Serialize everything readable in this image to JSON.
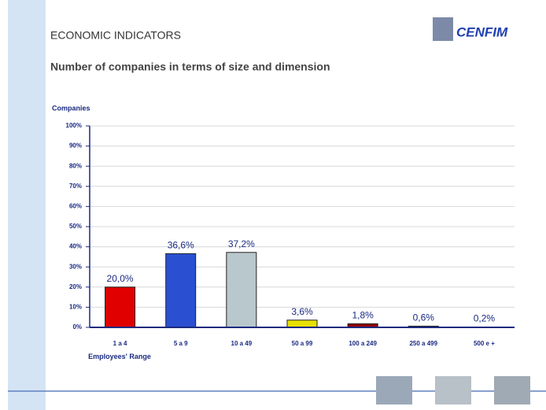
{
  "chart_data": {
    "type": "bar",
    "title": "ECONOMIC INDICATORS",
    "subtitle": "Number of companies in terms of size and dimension",
    "logo": "CENFIM",
    "y_label": "Companies",
    "x_label": "Employees' Range",
    "categories": [
      "1 a 4",
      "5 a 9",
      "10 a 49",
      "50 a 99",
      "100 a 249",
      "250 a 499",
      "500 e +"
    ],
    "values": [
      20.0,
      36.6,
      37.2,
      3.6,
      1.8,
      0.6,
      0.2
    ],
    "value_labels": [
      "20,0%",
      "36,6%",
      "37,2%",
      "3,6%",
      "1,8%",
      "0,6%",
      "0,2%"
    ],
    "colors": [
      "#e00000",
      "#2a4fd0",
      "#b8c8cc",
      "#e8e000",
      "#900000",
      "#c06060",
      "#5060c0"
    ],
    "ylim": [
      0,
      100
    ],
    "yticks": [
      {
        "value": 0,
        "label": "0%"
      },
      {
        "value": 10,
        "label": "10%"
      },
      {
        "value": 20,
        "label": "20%"
      },
      {
        "value": 30,
        "label": "30%"
      },
      {
        "value": 40,
        "label": "40%"
      },
      {
        "value": 50,
        "label": "50%"
      },
      {
        "value": 60,
        "label": "60%"
      },
      {
        "value": 70,
        "label": "70%"
      },
      {
        "value": 80,
        "label": "80%"
      },
      {
        "value": 90,
        "label": "90%"
      },
      {
        "value": 100,
        "label": "100%"
      }
    ],
    "grid": true
  }
}
